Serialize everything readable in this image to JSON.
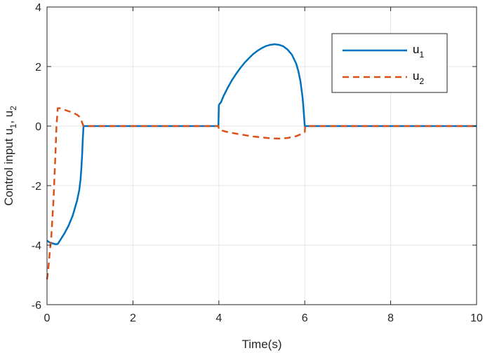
{
  "chart_data": {
    "type": "line",
    "xlabel": "Time(s)",
    "ylabel": "Control input u",
    "ylabel_sub1": "1",
    "ylabel_sep": ", u",
    "ylabel_sub2": "2",
    "xlim": [
      0,
      10
    ],
    "ylim": [
      -6,
      4
    ],
    "xticks": [
      0,
      2,
      4,
      6,
      8,
      10
    ],
    "xtick_labels": [
      "0",
      "2",
      "4",
      "6",
      "8",
      "10"
    ],
    "yticks": [
      -6,
      -4,
      -2,
      0,
      2,
      4
    ],
    "ytick_labels": [
      "-6",
      "-4",
      "-2",
      "0",
      "2",
      "4"
    ],
    "grid": true,
    "legend_position": "top-right",
    "series": [
      {
        "name": "u",
        "name_sub": "1",
        "color": "#0072BD",
        "style": "solid",
        "x": [
          0,
          0.05,
          0.1,
          0.15,
          0.2,
          0.25,
          0.3,
          0.4,
          0.5,
          0.6,
          0.7,
          0.75,
          0.78,
          0.8,
          0.82,
          0.83,
          0.85,
          1.0,
          2.0,
          3.0,
          3.99,
          4.0,
          4.02,
          4.05,
          4.1,
          4.2,
          4.3,
          4.4,
          4.5,
          4.6,
          4.7,
          4.8,
          4.9,
          5.0,
          5.1,
          5.2,
          5.3,
          5.4,
          5.5,
          5.6,
          5.7,
          5.8,
          5.85,
          5.9,
          5.95,
          5.97,
          5.99,
          6.0,
          6.01,
          7.0,
          8.0,
          9.0,
          10.0
        ],
        "y": [
          -3.85,
          -3.9,
          -3.93,
          -3.95,
          -3.97,
          -3.96,
          -3.85,
          -3.62,
          -3.35,
          -3.0,
          -2.5,
          -2.15,
          -1.8,
          -1.4,
          -0.9,
          -0.5,
          0,
          0,
          0,
          0,
          0,
          0.7,
          0.75,
          0.8,
          0.98,
          1.27,
          1.53,
          1.75,
          1.95,
          2.13,
          2.28,
          2.42,
          2.53,
          2.62,
          2.69,
          2.73,
          2.75,
          2.73,
          2.68,
          2.57,
          2.4,
          2.1,
          1.85,
          1.5,
          0.95,
          0.6,
          0.2,
          0,
          0,
          0,
          0,
          0,
          0
        ]
      },
      {
        "name": "u",
        "name_sub": "2",
        "color": "#D95319",
        "style": "dashed",
        "x": [
          0,
          0.03,
          0.06,
          0.1,
          0.15,
          0.2,
          0.22,
          0.25,
          0.3,
          0.4,
          0.5,
          0.6,
          0.7,
          0.75,
          0.8,
          0.82,
          0.85,
          1.0,
          2.0,
          3.0,
          3.99,
          4.0,
          4.2,
          4.5,
          4.8,
          5.0,
          5.2,
          5.4,
          5.6,
          5.8,
          5.95,
          6.0,
          6.01,
          7.0,
          8.0,
          9.0,
          10.0
        ],
        "y": [
          -5.15,
          -4.8,
          -4.3,
          -3.7,
          -2.5,
          -0.8,
          0,
          0.6,
          0.6,
          0.55,
          0.5,
          0.45,
          0.38,
          0.32,
          0.2,
          0.1,
          0,
          0,
          0,
          0,
          0,
          -0.12,
          -0.2,
          -0.28,
          -0.35,
          -0.38,
          -0.41,
          -0.42,
          -0.4,
          -0.34,
          -0.25,
          -0.2,
          0,
          0,
          0,
          0,
          0
        ]
      }
    ]
  }
}
